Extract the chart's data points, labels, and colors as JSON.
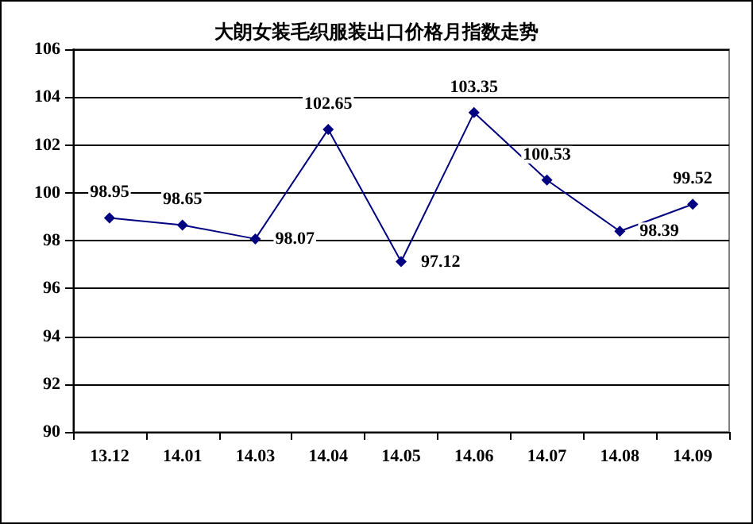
{
  "chart_data": {
    "type": "line",
    "title": "大朗女装毛织服装出口价格月指数走势",
    "categories": [
      "13.12",
      "14.01",
      "14.03",
      "14.04",
      "14.05",
      "14.06",
      "14.07",
      "14.08",
      "14.09"
    ],
    "series": [
      {
        "color": "#000080",
        "values": [
          98.95,
          98.65,
          98.07,
          102.65,
          97.12,
          103.35,
          100.53,
          98.39,
          99.52
        ]
      }
    ],
    "ylim": [
      90,
      106
    ],
    "yticks": [
      90,
      92,
      94,
      96,
      98,
      100,
      102,
      104,
      106
    ],
    "grid": "y",
    "marker": "diamond",
    "line_style": "solid",
    "data_labels": true
  }
}
